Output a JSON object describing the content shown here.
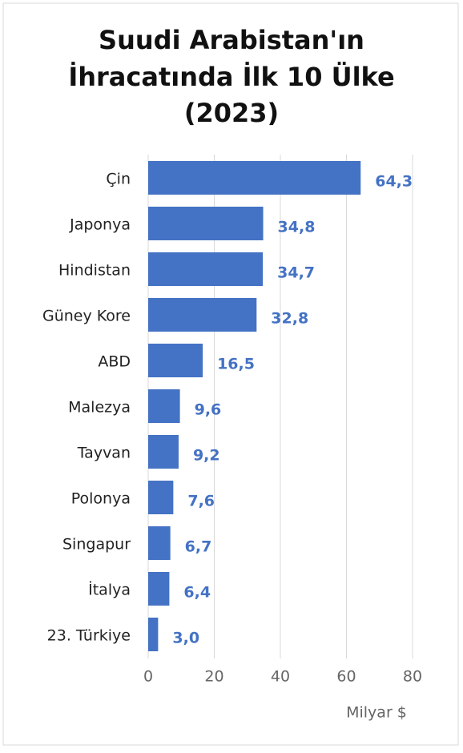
{
  "chart_data": {
    "type": "barh",
    "title": [
      "Suudi Arabistan'ın",
      "İhracatında İlk 10 Ülke",
      "(2023)"
    ],
    "categories": [
      "Çin",
      "Japonya",
      "Hindistan",
      "Güney Kore",
      "ABD",
      "Malezya",
      "Tayvan",
      "Polonya",
      "Singapur",
      "İtalya",
      "23. Türkiye"
    ],
    "values": [
      64.3,
      34.8,
      34.7,
      32.8,
      16.5,
      9.6,
      9.2,
      7.6,
      6.7,
      6.4,
      3.0
    ],
    "value_labels": [
      "64,3",
      "34,8",
      "34,7",
      "32,8",
      "16,5",
      "9,6",
      "9,2",
      "7,6",
      "6,7",
      "6,4",
      "3,0"
    ],
    "color": "#4472c4",
    "xlim": [
      0,
      80
    ],
    "xticks": [
      0,
      20,
      40,
      60,
      80
    ],
    "grid": true,
    "x_label": "Milyar $"
  }
}
